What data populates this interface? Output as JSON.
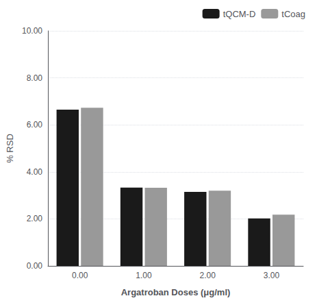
{
  "chart_data": {
    "type": "bar",
    "categories": [
      "0.00",
      "1.00",
      "2.00",
      "3.00"
    ],
    "series": [
      {
        "name": "tQCM-D",
        "color": "#1a1a1a",
        "values": [
          6.65,
          3.33,
          3.15,
          2.02
        ]
      },
      {
        "name": "tCoag",
        "color": "#999999",
        "values": [
          6.73,
          3.32,
          3.2,
          2.18
        ]
      }
    ],
    "xlabel": "Argatroban Doses (μg/ml)",
    "ylabel": "% RSD",
    "ylim": [
      0,
      10.0
    ],
    "yticks": [
      {
        "value": 0.0,
        "label": "0.00"
      },
      {
        "value": 2.0,
        "label": "2.00"
      },
      {
        "value": 4.0,
        "label": "4.00"
      },
      {
        "value": 6.0,
        "label": "6.00"
      },
      {
        "value": 8.0,
        "label": "8.00"
      },
      {
        "value": 10.0,
        "label": "10.00"
      }
    ],
    "grid": true,
    "legend": "upper right"
  }
}
